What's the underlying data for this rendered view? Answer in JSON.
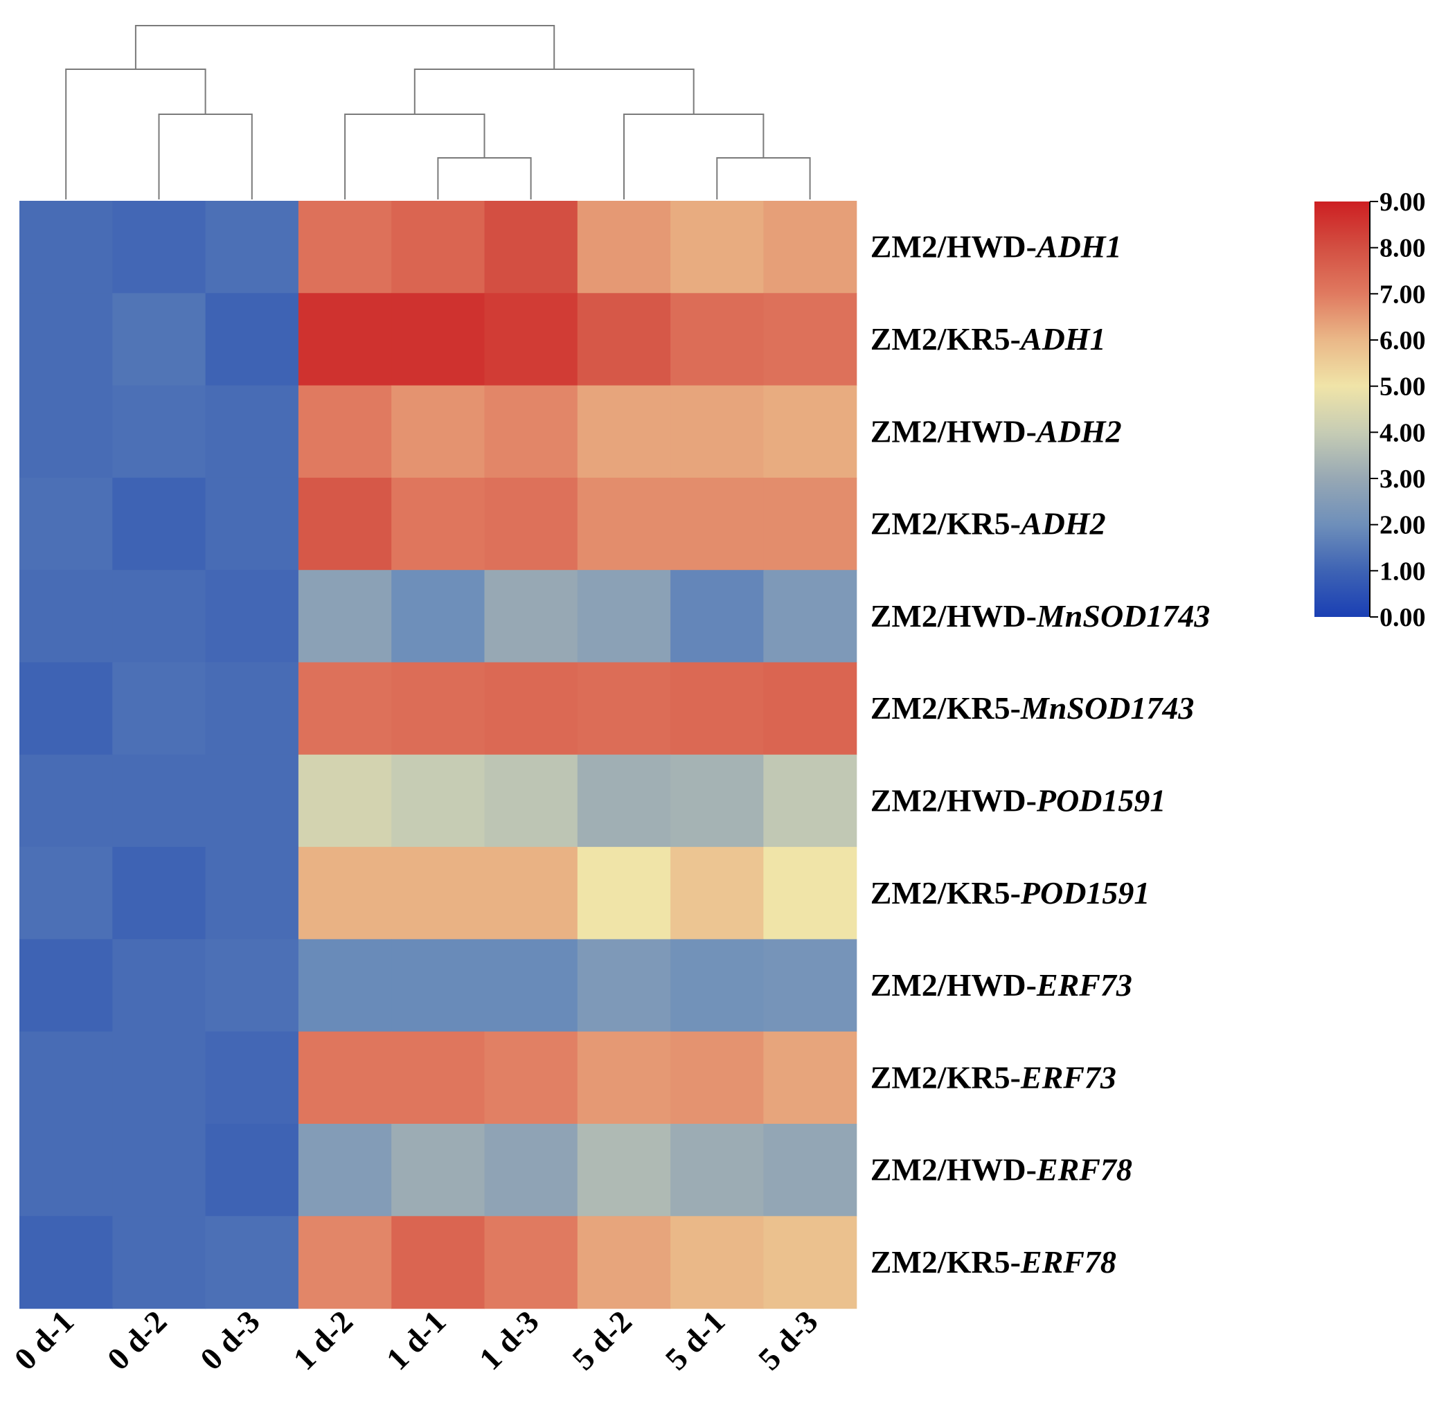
{
  "chart_data": {
    "type": "heatmap",
    "title": "",
    "columns": [
      "0 d-1",
      "0 d-2",
      "0 d-3",
      "1 d-2",
      "1 d-1",
      "1 d-3",
      "5 d-2",
      "5 d-1",
      "5 d-3"
    ],
    "rows": [
      {
        "prefix": "ZM2/HWD-",
        "gene": "ADH1",
        "values": [
          1.2,
          1.1,
          1.3,
          7.2,
          7.5,
          8.0,
          6.5,
          6.2,
          6.4
        ]
      },
      {
        "prefix": "ZM2/KR5-",
        "gene": "ADH1",
        "values": [
          1.2,
          1.4,
          1.0,
          8.6,
          8.6,
          8.4,
          7.8,
          7.3,
          7.2
        ]
      },
      {
        "prefix": "ZM2/HWD-",
        "gene": "ADH2",
        "values": [
          1.2,
          1.3,
          1.2,
          7.0,
          6.6,
          6.8,
          6.3,
          6.3,
          6.2
        ]
      },
      {
        "prefix": "ZM2/KR5-",
        "gene": "ADH2",
        "values": [
          1.3,
          1.0,
          1.2,
          7.8,
          7.1,
          7.2,
          6.7,
          6.7,
          6.7
        ]
      },
      {
        "prefix": "ZM2/HWD-",
        "gene": "MnSOD1743",
        "values": [
          1.2,
          1.2,
          1.1,
          2.7,
          2.0,
          3.0,
          2.7,
          1.8,
          2.4
        ]
      },
      {
        "prefix": "ZM2/KR5-",
        "gene": "MnSOD1743",
        "values": [
          1.0,
          1.3,
          1.2,
          7.2,
          7.3,
          7.4,
          7.3,
          7.4,
          7.5
        ]
      },
      {
        "prefix": "ZM2/HWD-",
        "gene": "POD1591",
        "values": [
          1.2,
          1.2,
          1.2,
          4.3,
          4.0,
          3.8,
          3.2,
          3.3,
          3.9
        ]
      },
      {
        "prefix": "ZM2/KR5-",
        "gene": "POD1591",
        "values": [
          1.3,
          1.0,
          1.2,
          6.1,
          6.1,
          6.1,
          5.0,
          5.7,
          5.0
        ]
      },
      {
        "prefix": "ZM2/HWD-",
        "gene": "ERF73",
        "values": [
          1.0,
          1.2,
          1.3,
          1.9,
          1.9,
          1.9,
          2.4,
          2.1,
          2.2
        ]
      },
      {
        "prefix": "ZM2/KR5-",
        "gene": "ERF73",
        "values": [
          1.2,
          1.2,
          1.1,
          7.1,
          7.1,
          6.9,
          6.5,
          6.6,
          6.3
        ]
      },
      {
        "prefix": "ZM2/HWD-",
        "gene": "ERF78",
        "values": [
          1.2,
          1.2,
          1.0,
          2.5,
          3.1,
          2.8,
          3.5,
          3.1,
          2.9
        ]
      },
      {
        "prefix": "ZM2/KR5-",
        "gene": "ERF78",
        "values": [
          1.0,
          1.2,
          1.3,
          6.8,
          7.5,
          7.0,
          6.3,
          6.0,
          5.8
        ]
      }
    ],
    "color_scale": {
      "min": 0,
      "max": 9,
      "ticks": [
        "0.00",
        "1.00",
        "2.00",
        "3.00",
        "4.00",
        "5.00",
        "6.00",
        "7.00",
        "8.00",
        "9.00"
      ],
      "stops": [
        {
          "value": 0,
          "color": "#1a3fb4"
        },
        {
          "value": 1,
          "color": "#3e63b4"
        },
        {
          "value": 2,
          "color": "#6e8fba"
        },
        {
          "value": 3,
          "color": "#97a8b4"
        },
        {
          "value": 4,
          "color": "#c6ccb4"
        },
        {
          "value": 5,
          "color": "#f0e4a8"
        },
        {
          "value": 6,
          "color": "#eab888"
        },
        {
          "value": 7,
          "color": "#e07a60"
        },
        {
          "value": 8,
          "color": "#d34f42"
        },
        {
          "value": 9,
          "color": "#cd1f22"
        }
      ]
    },
    "dendrogram": "column clustering: ((0 d-1,(0 d-2,0 d-3)),((1 d-2,(1 d-1,1 d-3)),(5 d-2,(5 d-1,5 d-3))))"
  }
}
